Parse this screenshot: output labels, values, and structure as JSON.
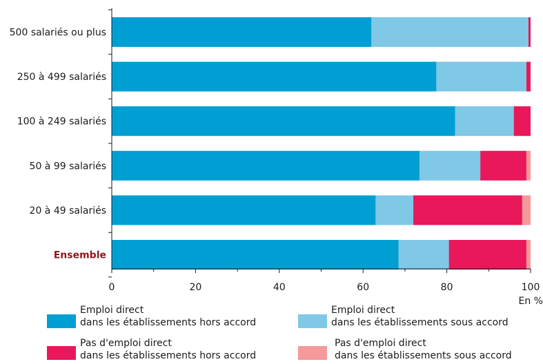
{
  "chart_data": {
    "type": "bar",
    "orientation": "horizontal",
    "stacked": true,
    "categories": [
      "500 salariés ou plus",
      "250 à 499 salariés",
      "100 à 249 salariés",
      "50 à 99 salariés",
      "20 à 49 salariés",
      "Ensemble"
    ],
    "series": [
      {
        "name": "Emploi direct dans les établissements hors accord",
        "color": "#009fd3",
        "values": [
          62,
          77.5,
          82,
          73.5,
          63,
          68.5
        ]
      },
      {
        "name": "Emploi direct dans les établissements sous accord",
        "color": "#7fc8e6",
        "values": [
          37.5,
          21.5,
          14,
          14.5,
          9,
          12
        ]
      },
      {
        "name": "Pas d'emploi direct dans les établissements hors accord",
        "color": "#e8185a",
        "values": [
          0.5,
          1,
          4,
          11,
          26,
          18.5
        ]
      },
      {
        "name": "Pas d'emploi direct dans les établissements sous accord",
        "color": "#f5999a",
        "values": [
          0,
          0,
          0,
          1,
          2,
          1
        ]
      }
    ],
    "xlim": [
      0,
      100
    ],
    "xticks": [
      "0",
      "20",
      "40",
      "60",
      "80",
      "100"
    ],
    "xlabel": "En %",
    "title": "",
    "ylabel": "",
    "grid": false,
    "legend_position": "bottom"
  },
  "legend": [
    {
      "line1": "Emploi direct",
      "line2": "dans les établissements hors accord",
      "color": "#009fd3"
    },
    {
      "line1": "Emploi direct",
      "line2": "dans les établissements sous accord",
      "color": "#7fc8e6"
    },
    {
      "line1": "Pas d'emploi direct",
      "line2": "dans les établissements hors accord",
      "color": "#e8185a"
    },
    {
      "line1": "Pas d'emploi direct",
      "line2": "dans les établissements sous accord",
      "color": "#f5999a"
    }
  ]
}
